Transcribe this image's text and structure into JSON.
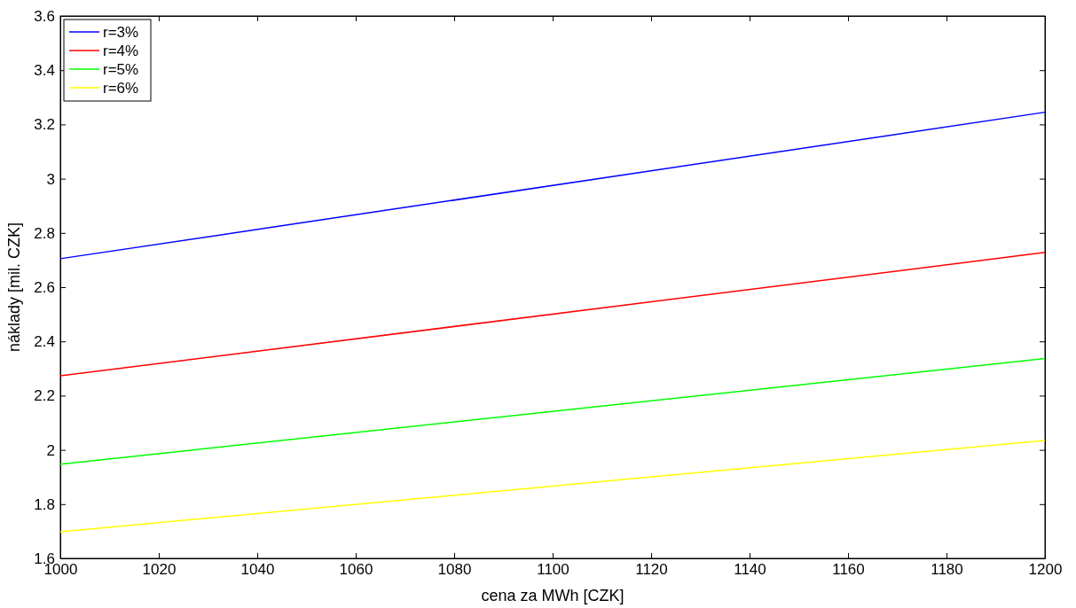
{
  "chart_data": {
    "type": "line",
    "xlabel": "cena za MWh [CZK]",
    "ylabel": "náklady [mil. CZK]",
    "x": [
      1000,
      1200
    ],
    "series": [
      {
        "name": "r=3%",
        "color": "#0000ff",
        "values": [
          2.705,
          3.245
        ]
      },
      {
        "name": "r=4%",
        "color": "#ff0000",
        "values": [
          2.273,
          2.728
        ]
      },
      {
        "name": "r=5%",
        "color": "#00ff00",
        "values": [
          1.947,
          2.337
        ]
      },
      {
        "name": "r=6%",
        "color": "#ffff00",
        "values": [
          1.698,
          2.035
        ]
      }
    ],
    "xlim": [
      1000,
      1200
    ],
    "xticks": [
      1000,
      1020,
      1040,
      1060,
      1080,
      1100,
      1120,
      1140,
      1160,
      1180,
      1200
    ],
    "ylim": [
      1.6,
      3.6
    ],
    "yticks": [
      1.6,
      1.8,
      2,
      2.2,
      2.4,
      2.6,
      2.8,
      3,
      3.2,
      3.4,
      3.6
    ],
    "grid": false,
    "legend": "top left",
    "marker": "none",
    "line_style": "solid"
  }
}
